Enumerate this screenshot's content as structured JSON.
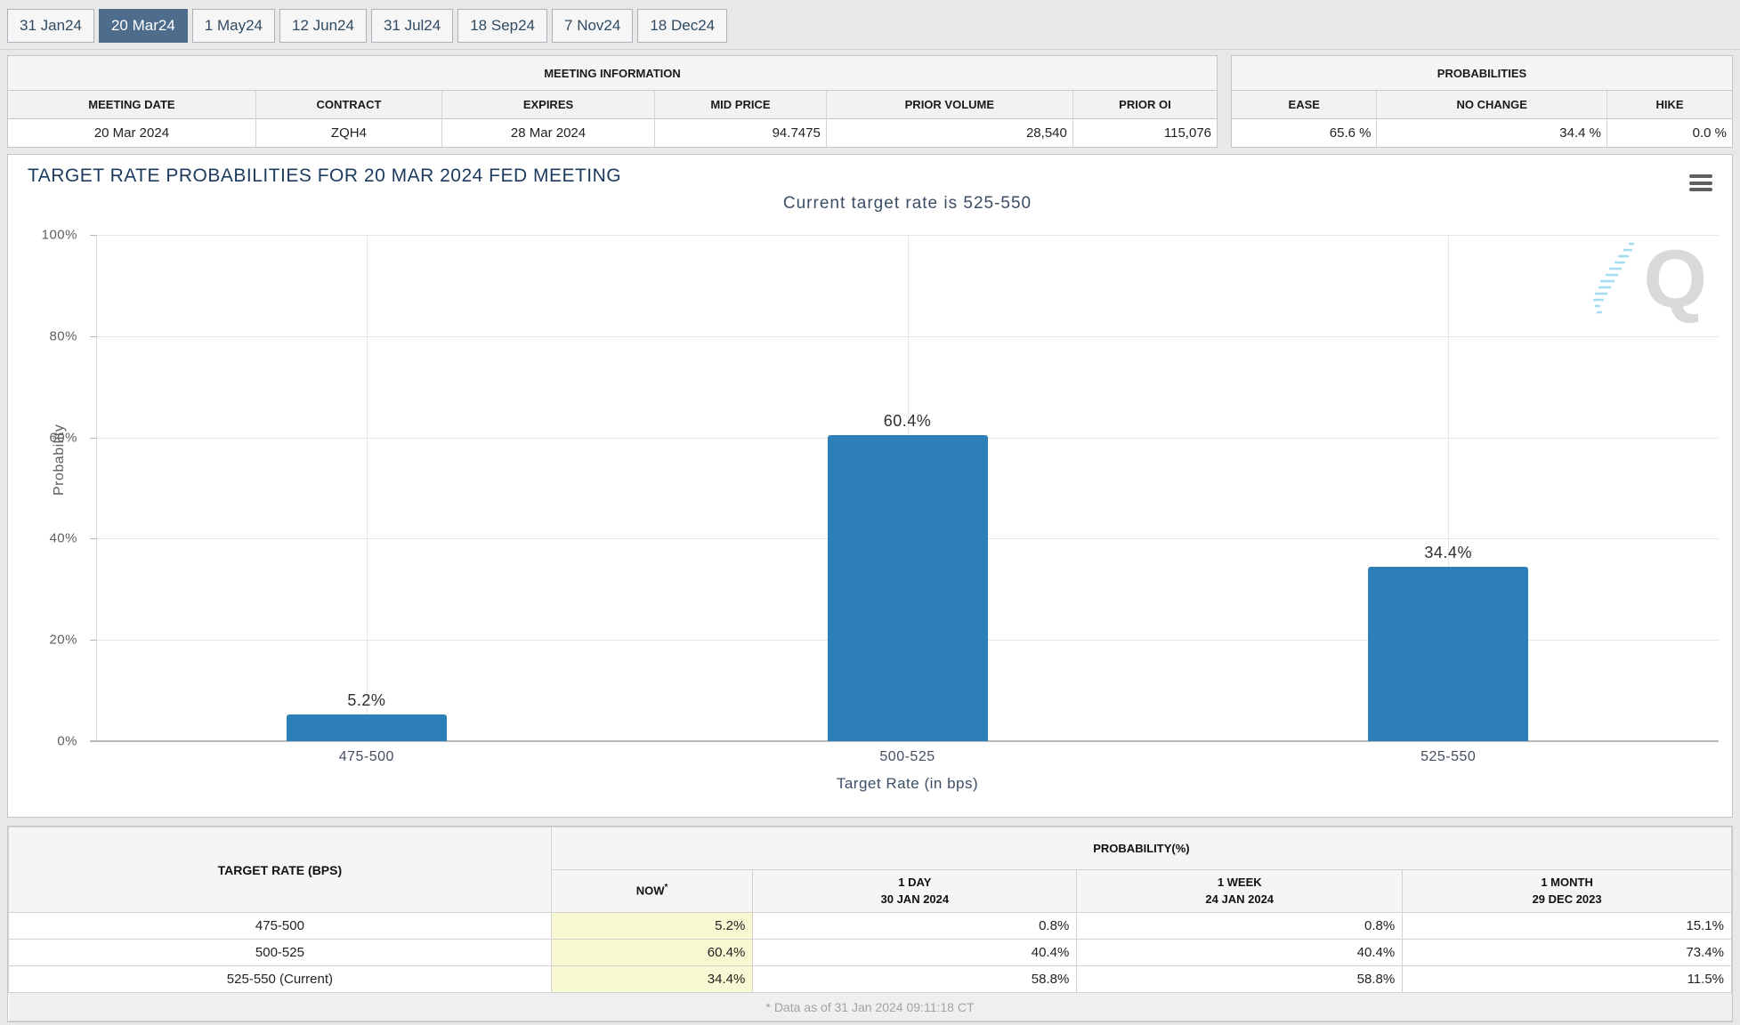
{
  "tabs": [
    {
      "label": "31 Jan24",
      "selected": false
    },
    {
      "label": "20 Mar24",
      "selected": true
    },
    {
      "label": "1 May24",
      "selected": false
    },
    {
      "label": "12 Jun24",
      "selected": false
    },
    {
      "label": "31 Jul24",
      "selected": false
    },
    {
      "label": "18 Sep24",
      "selected": false
    },
    {
      "label": "7 Nov24",
      "selected": false
    },
    {
      "label": "18 Dec24",
      "selected": false
    }
  ],
  "meeting_information": {
    "title": "MEETING INFORMATION",
    "columns": [
      "MEETING DATE",
      "CONTRACT",
      "EXPIRES",
      "MID PRICE",
      "PRIOR VOLUME",
      "PRIOR OI"
    ],
    "values": [
      "20 Mar 2024",
      "ZQH4",
      "28 Mar 2024",
      "94.7475",
      "28,540",
      "115,076"
    ]
  },
  "probabilities_panel": {
    "title": "PROBABILITIES",
    "columns": [
      "EASE",
      "NO CHANGE",
      "HIKE"
    ],
    "values": [
      "65.6 %",
      "34.4 %",
      "0.0 %"
    ]
  },
  "chart": {
    "title": "TARGET RATE PROBABILITIES FOR 20 MAR 2024 FED MEETING",
    "subtitle": "Current target rate is 525-550",
    "y_ticks": [
      "100%",
      "80%",
      "60%",
      "40%",
      "20%",
      "0%"
    ],
    "watermark_letter": "Q"
  },
  "chart_data": {
    "type": "bar",
    "title": "TARGET RATE PROBABILITIES FOR 20 MAR 2024 FED MEETING",
    "subtitle": "Current target rate is 525-550",
    "categories": [
      "475-500",
      "500-525",
      "525-550"
    ],
    "values": [
      5.2,
      60.4,
      34.4
    ],
    "value_labels": [
      "5.2%",
      "60.4%",
      "34.4%"
    ],
    "xlabel": "Target Rate (in bps)",
    "ylabel": "Probability",
    "ylim": [
      0,
      100
    ],
    "grid": true,
    "legend": "none",
    "bar_color": "#2d7fb8"
  },
  "history_table": {
    "corner_header": "TARGET RATE (BPS)",
    "group_header": "PROBABILITY(%)",
    "sub_headers": [
      {
        "line1": "NOW",
        "sup": "*",
        "line2": ""
      },
      {
        "line1": "1 DAY",
        "line2": "30 JAN 2024"
      },
      {
        "line1": "1 WEEK",
        "line2": "24 JAN 2024"
      },
      {
        "line1": "1 MONTH",
        "line2": "29 DEC 2023"
      }
    ],
    "rows": [
      {
        "label": "475-500",
        "now": "5.2%",
        "day": "0.8%",
        "week": "0.8%",
        "month": "15.1%"
      },
      {
        "label": "500-525",
        "now": "60.4%",
        "day": "40.4%",
        "week": "40.4%",
        "month": "73.4%"
      },
      {
        "label": "525-550 (Current)",
        "now": "34.4%",
        "day": "58.8%",
        "week": "58.8%",
        "month": "11.5%"
      }
    ],
    "footnote": "* Data as of 31 Jan 2024 09:11:18 CT"
  }
}
